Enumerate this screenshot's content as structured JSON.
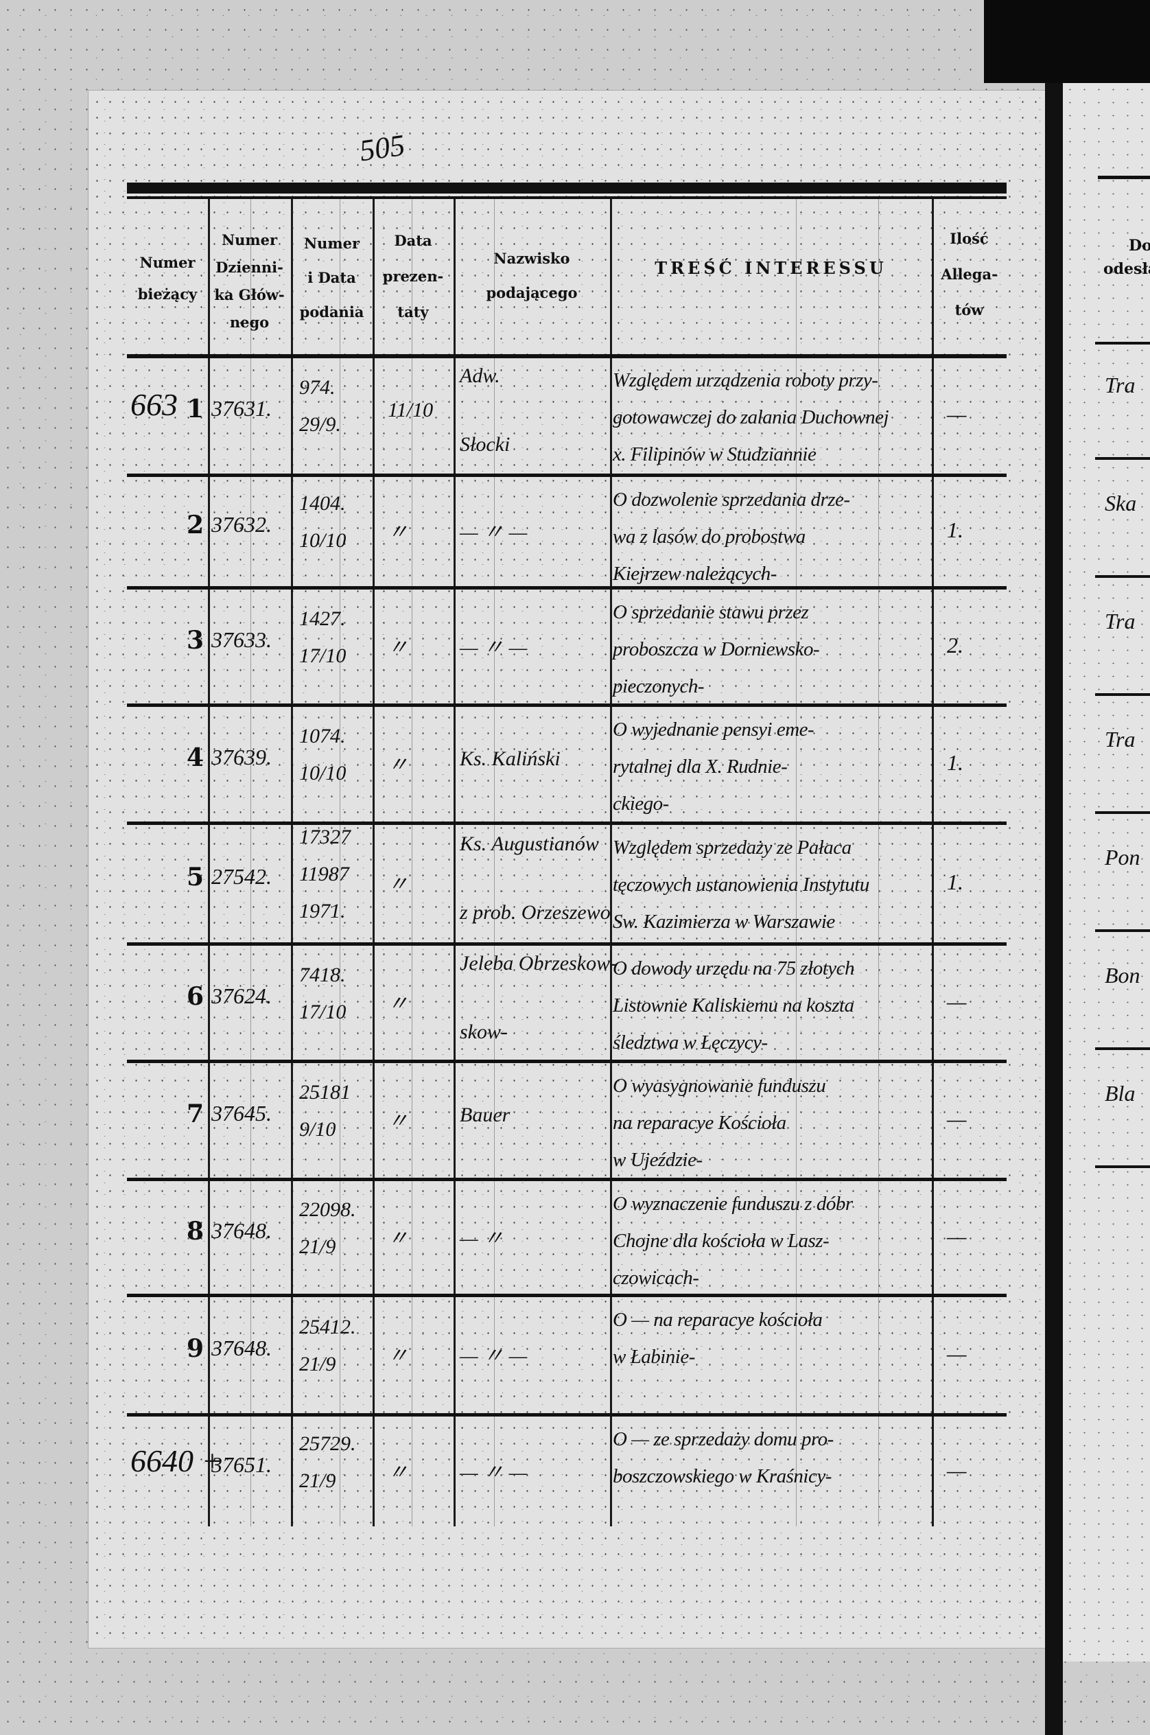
{
  "page_number": "505",
  "headers": {
    "numer_biezacy": [
      "Numer",
      "bieżący"
    ],
    "numer_dziennika": [
      "Numer",
      "Dzienni-",
      "ka Głów-",
      "nego"
    ],
    "numer_data_podania": [
      "Numer",
      "i Data",
      "podania"
    ],
    "data_prezentaty": [
      "Data",
      "prezen-",
      "taty"
    ],
    "nazwisko": [
      "Nazwisko",
      "podającego"
    ],
    "tresc": "TREŚĆ INTERESSU",
    "ilosc_allegatow": [
      "Ilość",
      "Allega-",
      "tów"
    ]
  },
  "rows": [
    {
      "margin": "663",
      "no": "1",
      "dziennik": "37631.",
      "podanie": [
        "974.",
        "29/9."
      ],
      "prezentata": "11/10",
      "nazwisko": [
        "Adw.",
        "Słocki"
      ],
      "tresc": [
        "Względem urządzenia roboty przy-",
        "gotowawczej do zalania Duchownej",
        "x. Filipinów w Studziannie"
      ],
      "allegaty": "—"
    },
    {
      "margin": "",
      "no": "2",
      "dziennik": "37632.",
      "podanie": [
        "1404.",
        "10/10"
      ],
      "prezentata": "〃",
      "nazwisko": [
        "— 〃 —"
      ],
      "tresc": [
        "O dozwolenie sprzedania drze-",
        "wa z lasów do probostwa",
        "Kiejrzew należących-"
      ],
      "allegaty": "1."
    },
    {
      "margin": "",
      "no": "3",
      "dziennik": "37633.",
      "podanie": [
        "1427.",
        "17/10"
      ],
      "prezentata": "〃",
      "nazwisko": [
        "— 〃 —"
      ],
      "tresc": [
        "O sprzedanie stawu przez",
        "proboszcza w Dorniewsko-",
        "pieczonych-"
      ],
      "allegaty": "2."
    },
    {
      "margin": "",
      "no": "4",
      "dziennik": "37639.",
      "podanie": [
        "1074.",
        "10/10"
      ],
      "prezentata": "〃",
      "nazwisko": [
        "Ks. Kaliński"
      ],
      "tresc": [
        "O wyjednanie pensyi eme-",
        "rytalnej dla X. Rudnie-",
        "ckiego-"
      ],
      "allegaty": "1."
    },
    {
      "margin": "",
      "no": "5",
      "dziennik": "27542.",
      "podanie": [
        "17327",
        "11987",
        "1971."
      ],
      "prezentata": "〃",
      "nazwisko": [
        "Ks. Augustianów",
        "z prob. Orzeszewo"
      ],
      "tresc": [
        "Względem sprzedaży ze Pałaca",
        "tęczowych ustanowienia Instytutu",
        "Sw. Kazimierza w Warszawie"
      ],
      "allegaty": "1."
    },
    {
      "margin": "",
      "no": "6",
      "dziennik": "37624.",
      "podanie": [
        "7418.",
        "17/10"
      ],
      "prezentata": "〃",
      "nazwisko": [
        "Jeleba Obrzeskow-",
        "skow-"
      ],
      "tresc": [
        "O dowody urzędu na 75 złotych",
        "Listownie Kaliskiemu na koszta",
        "śledztwa w Łęczycy-"
      ],
      "allegaty": "—"
    },
    {
      "margin": "",
      "no": "7",
      "dziennik": "37645.",
      "podanie": [
        "25181",
        "9/10"
      ],
      "prezentata": "〃",
      "nazwisko": [
        "Bauer"
      ],
      "tresc": [
        "O wyasygnowanie funduszu",
        "na reparacye Kościoła",
        "w Ujeździe-"
      ],
      "allegaty": "—"
    },
    {
      "margin": "",
      "no": "8",
      "dziennik": "37648.",
      "podanie": [
        "22098.",
        "21/9"
      ],
      "prezentata": "〃",
      "nazwisko": [
        "— 〃"
      ],
      "tresc": [
        "O wyznaczenie funduszu z dóbr",
        "Chojne dla kościoła w Lasz-",
        "czowicach-"
      ],
      "allegaty": "—"
    },
    {
      "margin": "",
      "no": "9",
      "dziennik": "37648.",
      "podanie": [
        "25412.",
        "21/9"
      ],
      "prezentata": "〃",
      "nazwisko": [
        "— 〃 —"
      ],
      "tresc": [
        "O — na reparacye kościoła",
        "w Łabinie-"
      ],
      "allegaty": "—"
    },
    {
      "margin": "6640 +",
      "no": "",
      "dziennik": "37651.",
      "podanie": [
        "25729.",
        "21/9"
      ],
      "prezentata": "〃",
      "nazwisko": [
        "— 〃 —"
      ],
      "tresc": [
        "O — ze sprzedaży domu pro-",
        "boszczowskiego w Kraśnicy-"
      ],
      "allegaty": "—"
    }
  ],
  "right_page": {
    "header": [
      "Do",
      "odesła"
    ],
    "entries": [
      "Tra",
      "Ska",
      "Tra",
      "Tra",
      "Pon",
      "Bon",
      "Bla"
    ]
  }
}
